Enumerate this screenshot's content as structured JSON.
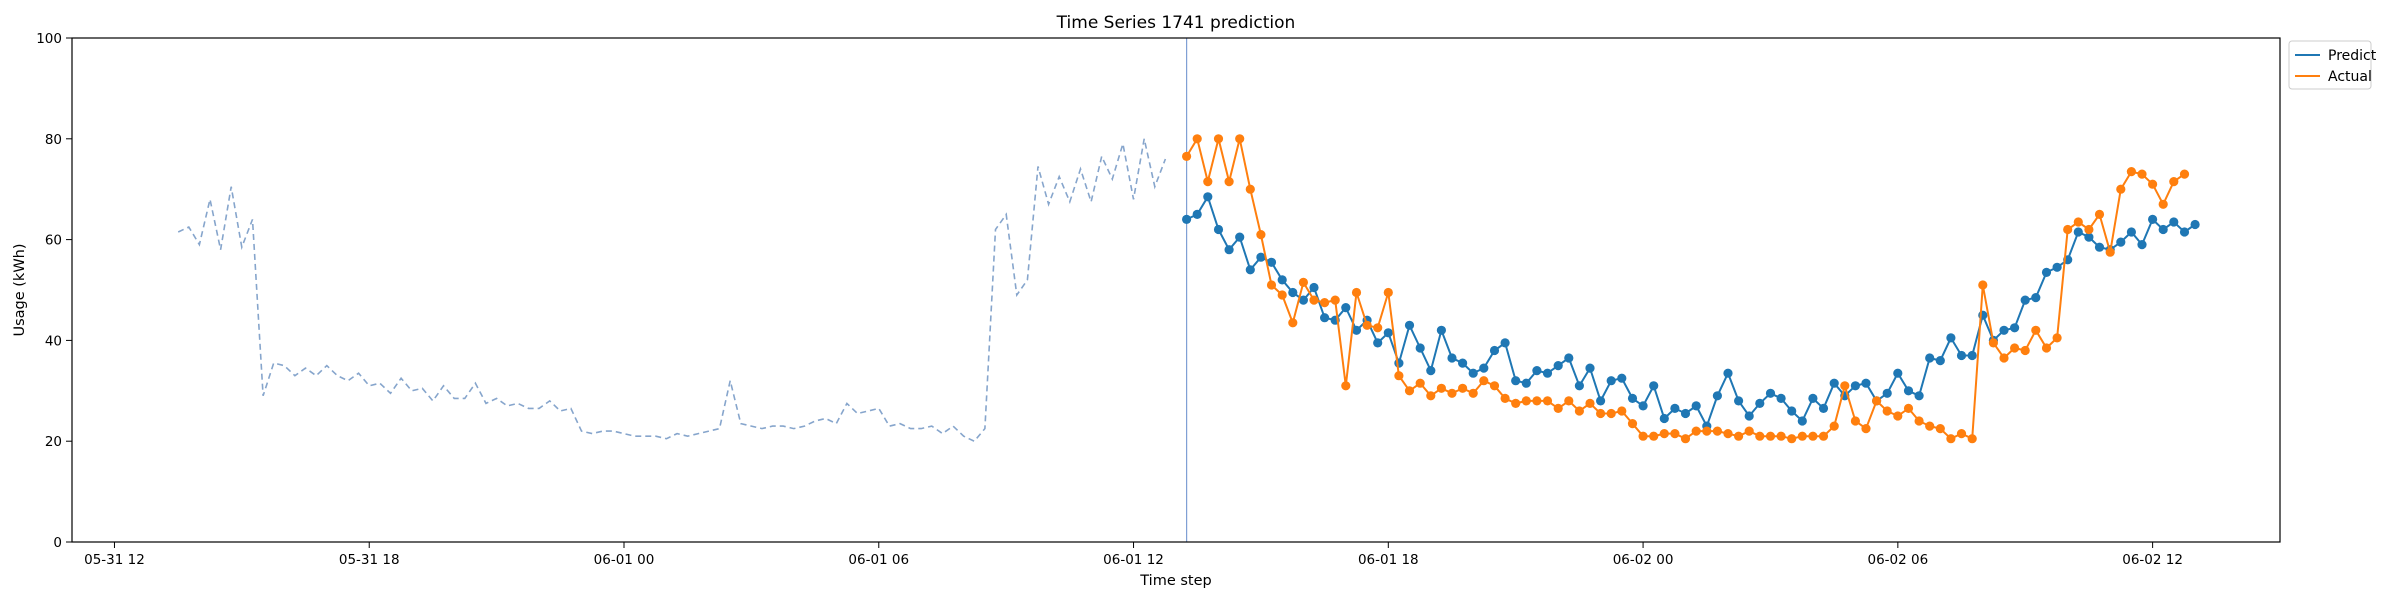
{
  "chart_data": {
    "type": "line",
    "title": "Time Series 1741 prediction",
    "xlabel": "Time step",
    "ylabel": "Usage (kWh)",
    "ylim": [
      0,
      100
    ],
    "xlim": [
      "2024-05-31T11:00",
      "2024-06-02T15:00"
    ],
    "yticks": [
      0,
      20,
      40,
      60,
      80,
      100
    ],
    "xticks": [
      {
        "t": "2024-05-31T12:00",
        "label": "05-31 12"
      },
      {
        "t": "2024-05-31T18:00",
        "label": "05-31 18"
      },
      {
        "t": "2024-06-01T00:00",
        "label": "06-01 00"
      },
      {
        "t": "2024-06-01T06:00",
        "label": "06-01 06"
      },
      {
        "t": "2024-06-01T12:00",
        "label": "06-01 12"
      },
      {
        "t": "2024-06-01T18:00",
        "label": "06-01 18"
      },
      {
        "t": "2024-06-02T00:00",
        "label": "06-02 00"
      },
      {
        "t": "2024-06-02T06:00",
        "label": "06-02 06"
      },
      {
        "t": "2024-06-02T12:00",
        "label": "06-02 12"
      }
    ],
    "grid": false,
    "legend_position": "outside-top-right",
    "forecast_start": "2024-06-01T13:15",
    "history": {
      "start": "2024-05-31T13:30",
      "step_minutes": 15,
      "style": "dashed",
      "color": "#86a5cc",
      "values": [
        61.5,
        62.5,
        59,
        68,
        58,
        70.5,
        58.5,
        64,
        29,
        35.5,
        35,
        33,
        34.5,
        33,
        35,
        33,
        32,
        33.5,
        31,
        31.5,
        29.5,
        32.5,
        30,
        30.5,
        28,
        31,
        28.5,
        28.5,
        31.5,
        27.5,
        28.5,
        27,
        27.5,
        26.5,
        26.5,
        28,
        26,
        26.5,
        22,
        21.5,
        22,
        22,
        21.5,
        21,
        21,
        21,
        20.5,
        21.5,
        21,
        21.5,
        22,
        22.5,
        32,
        23.5,
        23,
        22.5,
        23,
        23,
        22.5,
        23,
        24,
        24.5,
        23.5,
        27.5,
        25.5,
        26,
        26.5,
        23,
        23.5,
        22.5,
        22.5,
        23,
        21.5,
        23,
        21,
        20,
        22.5,
        62,
        65,
        49,
        52,
        74.5,
        67,
        72.5,
        67.5,
        74,
        67.5,
        76.5,
        72,
        79,
        68,
        80,
        70.5,
        76
      ]
    },
    "forecast": {
      "start": "2024-06-01T13:15",
      "step_minutes": 15,
      "series": [
        {
          "name": "Predict",
          "color": "#1f77b4",
          "values": [
            64,
            65,
            68.5,
            62,
            58,
            60.5,
            54,
            56.5,
            55.5,
            52,
            49.5,
            48,
            50.5,
            44.5,
            44,
            46.5,
            42,
            44,
            39.5,
            41.5,
            35.5,
            43,
            38.5,
            34,
            42,
            36.5,
            35.5,
            33.5,
            34.5,
            38,
            39.5,
            32,
            31.5,
            34,
            33.5,
            35,
            36.5,
            31,
            34.5,
            28,
            32,
            32.5,
            28.5,
            27,
            31,
            24.5,
            26.5,
            25.5,
            27,
            23,
            29,
            33.5,
            28,
            25,
            27.5,
            29.5,
            28.5,
            26,
            24,
            28.5,
            26.5,
            31.5,
            29,
            31,
            31.5,
            28,
            29.5,
            33.5,
            30,
            29,
            36.5,
            36,
            40.5,
            37,
            37,
            45,
            40,
            42,
            42.5,
            48,
            48.5,
            53.5,
            54.5,
            56,
            61.5,
            60.5,
            58.5,
            58,
            59.5,
            61.5,
            59,
            64,
            62,
            63.5,
            61.5,
            63
          ]
        },
        {
          "name": "Actual",
          "color": "#ff7f0e",
          "values": [
            76.5,
            80,
            71.5,
            80,
            71.5,
            80,
            70,
            61,
            51,
            49,
            43.5,
            51.5,
            48,
            47.5,
            48,
            31,
            49.5,
            43,
            42.5,
            49.5,
            33,
            30,
            31.5,
            29,
            30.5,
            29.5,
            30.5,
            29.5,
            32,
            31,
            28.5,
            27.5,
            28,
            28,
            28,
            26.5,
            28,
            26,
            27.5,
            25.5,
            25.5,
            26,
            23.5,
            21,
            21,
            21.5,
            21.5,
            20.5,
            22,
            22,
            22,
            21.5,
            21,
            22,
            21,
            21,
            21,
            20.5,
            21,
            21,
            21,
            23,
            31,
            24,
            22.5,
            28,
            26,
            25,
            26.5,
            24,
            23,
            22.5,
            20.5,
            21.5,
            20.5,
            51,
            39.5,
            36.5,
            38.5,
            38,
            42,
            38.5,
            40.5,
            62,
            63.5,
            62,
            65,
            57.5,
            70,
            73.5,
            73,
            71,
            67,
            71.5,
            73
          ]
        }
      ]
    }
  }
}
